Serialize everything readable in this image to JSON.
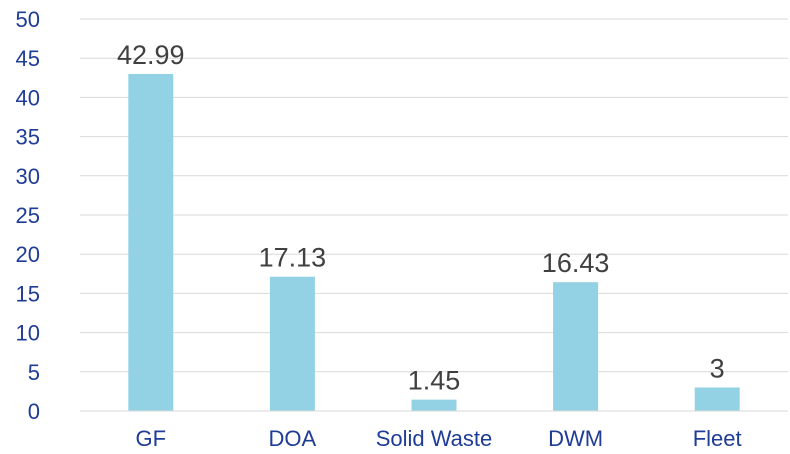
{
  "chart_data": {
    "type": "bar",
    "categories": [
      "GF",
      "DOA",
      "Solid Waste",
      "DWM",
      "Fleet"
    ],
    "values": [
      42.99,
      17.13,
      1.45,
      16.43,
      3
    ],
    "data_labels": [
      "42.99",
      "17.13",
      "1.45",
      "16.43",
      "3"
    ],
    "y_ticks": [
      "0",
      "5",
      "10",
      "15",
      "20",
      "25",
      "30",
      "35",
      "40",
      "45",
      "50"
    ],
    "ylim": [
      0,
      50
    ],
    "grid": true,
    "legend": false,
    "colors": {
      "bar": "#92d2e4",
      "axis_text": "#1f3c96",
      "data_label": "#404040",
      "grid": "#d9d9d9"
    }
  }
}
